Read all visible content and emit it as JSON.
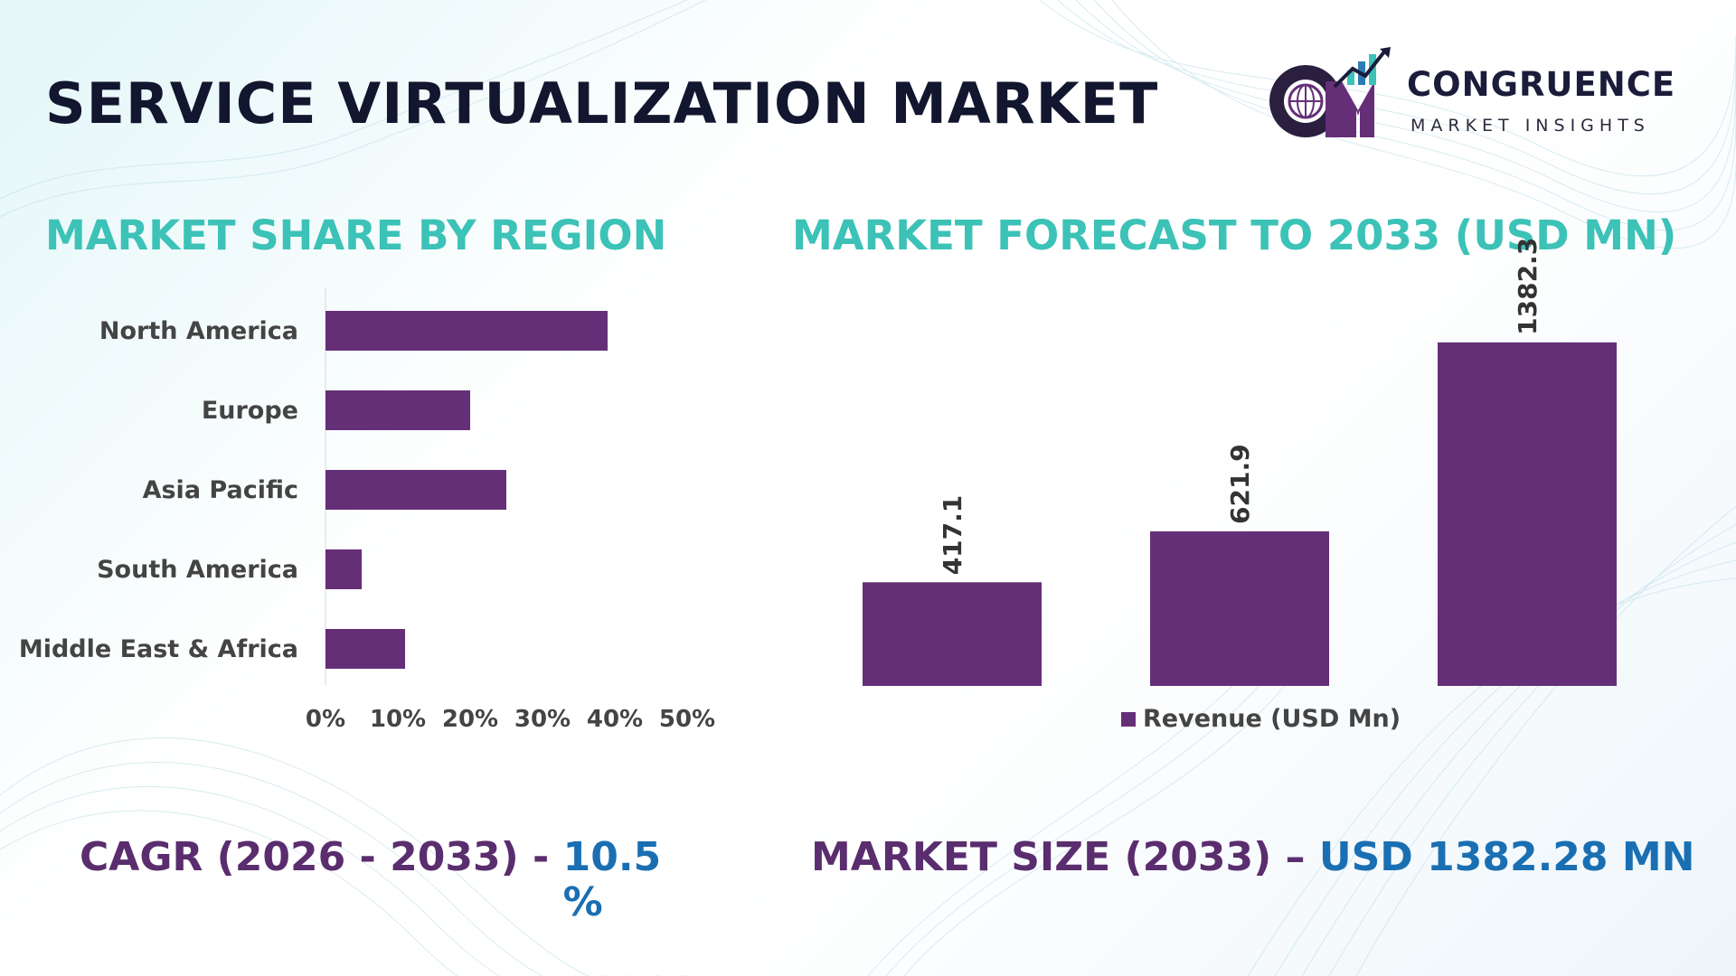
{
  "header": {
    "title": "SERVICE VIRTUALIZATION MARKET"
  },
  "logo": {
    "name": "CONGRUENCE",
    "tagline": "MARKET INSIGHTS"
  },
  "colors": {
    "bar": "#652f78",
    "section_title": "#3cc2b7",
    "stat_label": "#5a2d6e",
    "stat_value": "#1a6fb3"
  },
  "left_section": {
    "title": "MARKET SHARE BY REGION"
  },
  "right_section": {
    "title": "MARKET FORECAST TO 2033 (USD MN)"
  },
  "chart_data": [
    {
      "type": "bar",
      "orientation": "horizontal",
      "categories": [
        "North America",
        "Europe",
        "Asia Pacific",
        "South America",
        "Middle East & Africa"
      ],
      "values": [
        39,
        20,
        25,
        5,
        11
      ],
      "xlim": [
        0,
        50
      ],
      "xticks": [
        "0%",
        "10%",
        "20%",
        "30%",
        "40%",
        "50%"
      ],
      "grid": false,
      "legend": false
    },
    {
      "type": "bar",
      "orientation": "vertical",
      "categories": [
        "",
        "",
        ""
      ],
      "series": [
        {
          "name": "Revenue (USD Mn)",
          "values": [
            417.1,
            621.9,
            1382.3
          ],
          "labels": [
            "417.1",
            "621.9",
            "1382.3"
          ]
        }
      ],
      "ylim": [
        0,
        1400
      ],
      "grid": false,
      "legend": "bottom-center"
    }
  ],
  "stats": {
    "cagr_label": "CAGR (2026 - 2033) -",
    "cagr_value": "10.5 %",
    "size_label": "MARKET SIZE (2033) –",
    "size_value": "USD 1382.28 MN"
  }
}
